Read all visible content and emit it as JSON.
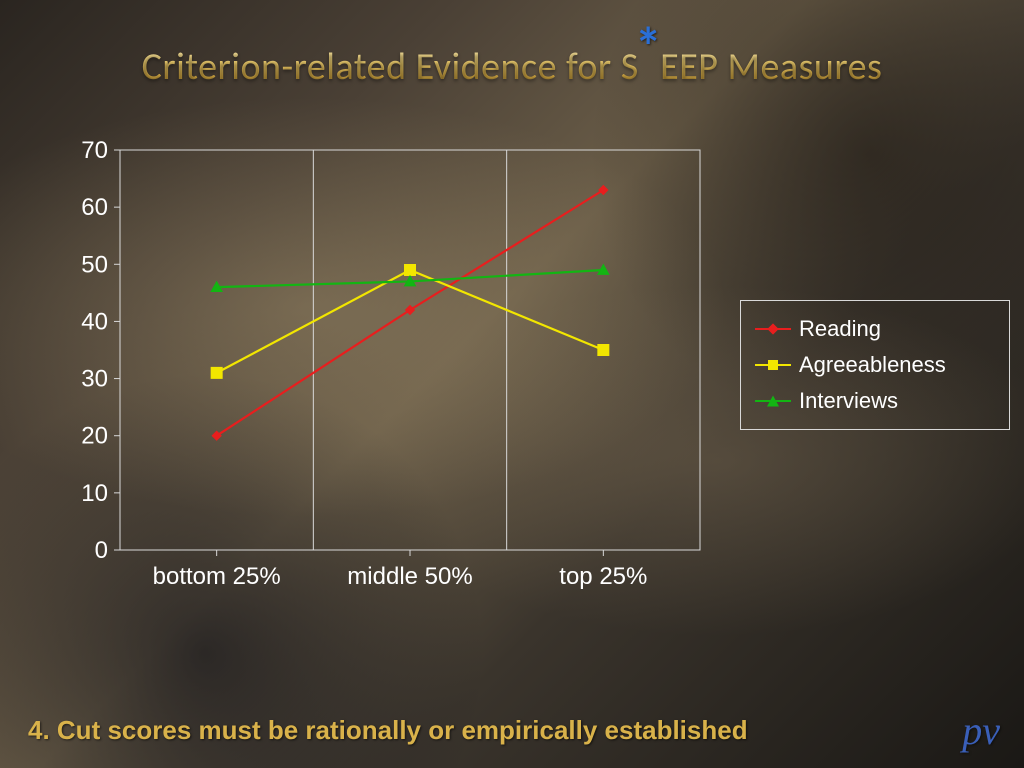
{
  "title": {
    "part1": "Criterion-related Evidence for S",
    "asterisk": "*",
    "part2": "EEP Measures",
    "fontsize": 38,
    "gradient_top": "#f4e8b8",
    "gradient_bottom": "#8a6a28",
    "asterisk_color": "#2a6fd6"
  },
  "chart": {
    "type": "line",
    "categories": [
      "bottom 25%",
      "middle 50%",
      "top 25%"
    ],
    "ylim": [
      0,
      70
    ],
    "ytick_step": 10,
    "yticks": [
      0,
      10,
      20,
      30,
      40,
      50,
      60,
      70
    ],
    "axis_font_size": 24,
    "axis_text_color": "#ffffff",
    "plot_border_color": "#d9d9d9",
    "grid_color": "#d9d9d9",
    "background_color": "transparent",
    "line_width": 2.2,
    "marker_size": 8,
    "series": [
      {
        "name": "Reading",
        "marker": "diamond",
        "color": "#e81e1e",
        "values": [
          20,
          42,
          63
        ]
      },
      {
        "name": "Agreeableness",
        "marker": "square",
        "color": "#f2e600",
        "values": [
          31,
          49,
          35
        ]
      },
      {
        "name": "Interviews",
        "marker": "triangle",
        "color": "#13b513",
        "values": [
          46,
          47,
          49
        ]
      }
    ],
    "legend": {
      "border_color": "#d9d9d9",
      "font_size": 22,
      "text_color": "#ffffff",
      "position": "right-middle"
    }
  },
  "footer": {
    "text": "4. Cut scores must be rationally or empirically established",
    "color": "#d9b24a",
    "fontsize": 26,
    "fontweight": "700"
  },
  "watermark": {
    "text": "pv",
    "color": "#3a5fb8",
    "font": "cursive"
  }
}
